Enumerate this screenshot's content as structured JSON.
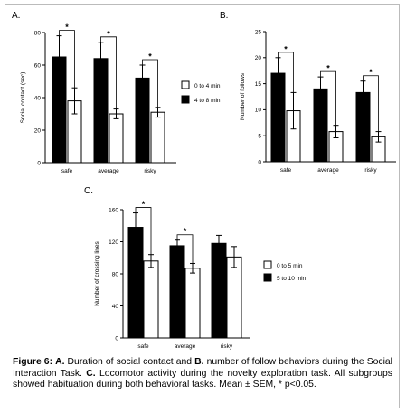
{
  "caption": {
    "text": "Figure 6: A. Duration of social contact and B. number of follow behaviors during the Social Interaction Task. C. Locomotor activity during the novelty exploration task. All subgroups showed habituation during both behavioral tasks. Mean ± SEM, * p<0.05."
  },
  "chart_data": [
    {
      "panel": "A.",
      "type": "bar",
      "categories": [
        "safe",
        "average",
        "risky"
      ],
      "series": [
        {
          "name": "4 to 8 min",
          "color": "#000000",
          "values": [
            65,
            64,
            52
          ],
          "errors": [
            13,
            10,
            8
          ]
        },
        {
          "name": "0 to 4 min",
          "color": "#ffffff",
          "values": [
            38,
            30,
            31
          ],
          "errors": [
            8,
            3,
            3
          ]
        }
      ],
      "legend": [
        "0 to 4 min",
        "4 to 8 min"
      ],
      "legend_placement": "right",
      "xlabel": "",
      "ylabel": "Social contact (sec)",
      "ylim": [
        0,
        80
      ],
      "yticks": [
        0,
        20,
        40,
        60,
        80
      ],
      "significant": [
        true,
        true,
        true
      ],
      "grid": false
    },
    {
      "panel": "B.",
      "type": "bar",
      "categories": [
        "safe",
        "average",
        "risky"
      ],
      "series": [
        {
          "name": "4 to 8 min",
          "color": "#000000",
          "values": [
            17,
            14,
            13.3
          ],
          "errors": [
            3,
            2.3,
            2.2
          ]
        },
        {
          "name": "0 to 4 min",
          "color": "#ffffff",
          "values": [
            9.8,
            5.8,
            4.8
          ],
          "errors": [
            3.5,
            1.2,
            1
          ]
        }
      ],
      "xlabel": "",
      "ylabel": "Number of follows",
      "ylim": [
        0,
        25
      ],
      "yticks": [
        0,
        5,
        10,
        15,
        20,
        25
      ],
      "significant": [
        true,
        true,
        true
      ],
      "grid": false
    },
    {
      "panel": "C.",
      "type": "bar",
      "categories": [
        "safe",
        "average",
        "risky"
      ],
      "series": [
        {
          "name": "5 to 10 min",
          "color": "#000000",
          "values": [
            138,
            115,
            118
          ],
          "errors": [
            18,
            7,
            10
          ]
        },
        {
          "name": "0 to 5 min",
          "color": "#ffffff",
          "values": [
            96,
            87,
            101
          ],
          "errors": [
            8,
            6,
            13
          ]
        }
      ],
      "legend": [
        "0 to 5 min",
        "5 to 10 min"
      ],
      "legend_placement": "right",
      "xlabel": "",
      "ylabel": "Number of crossing lines",
      "ylim": [
        0,
        160
      ],
      "yticks": [
        0,
        40,
        80,
        120,
        160
      ],
      "significant": [
        true,
        true,
        false
      ],
      "grid": false
    }
  ]
}
